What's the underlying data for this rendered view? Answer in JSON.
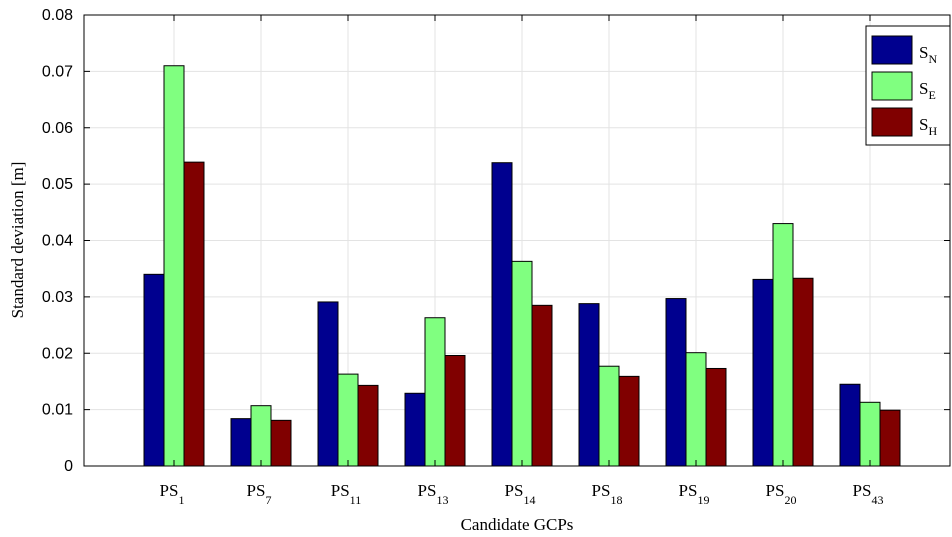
{
  "chart_data": {
    "type": "bar",
    "title": "",
    "xlabel": "Candidate GCPs",
    "ylabel": "Standard deviation [m]",
    "ylim": [
      0,
      0.08
    ],
    "yticks": [
      "0",
      "0.01",
      "0.02",
      "0.03",
      "0.04",
      "0.05",
      "0.06",
      "0.07",
      "0.08"
    ],
    "grid": true,
    "legend_position": "top-right",
    "categories": [
      {
        "main": "PS",
        "sub": "1"
      },
      {
        "main": "PS",
        "sub": "7"
      },
      {
        "main": "PS",
        "sub": "11"
      },
      {
        "main": "PS",
        "sub": "13"
      },
      {
        "main": "PS",
        "sub": "14"
      },
      {
        "main": "PS",
        "sub": "18"
      },
      {
        "main": "PS",
        "sub": "19"
      },
      {
        "main": "PS",
        "sub": "20"
      },
      {
        "main": "PS",
        "sub": "43"
      }
    ],
    "series": [
      {
        "main": "S",
        "sub": "N",
        "color": "#00008f",
        "values": [
          0.034,
          0.0084,
          0.0291,
          0.0129,
          0.0538,
          0.0288,
          0.0297,
          0.0331,
          0.0145
        ]
      },
      {
        "main": "S",
        "sub": "E",
        "color": "#80ff80",
        "values": [
          0.071,
          0.0107,
          0.0163,
          0.0263,
          0.0363,
          0.0177,
          0.0201,
          0.043,
          0.0113
        ]
      },
      {
        "main": "S",
        "sub": "H",
        "color": "#800000",
        "values": [
          0.0539,
          0.0081,
          0.0143,
          0.0196,
          0.0285,
          0.0159,
          0.0173,
          0.0333,
          0.0099
        ]
      }
    ]
  }
}
